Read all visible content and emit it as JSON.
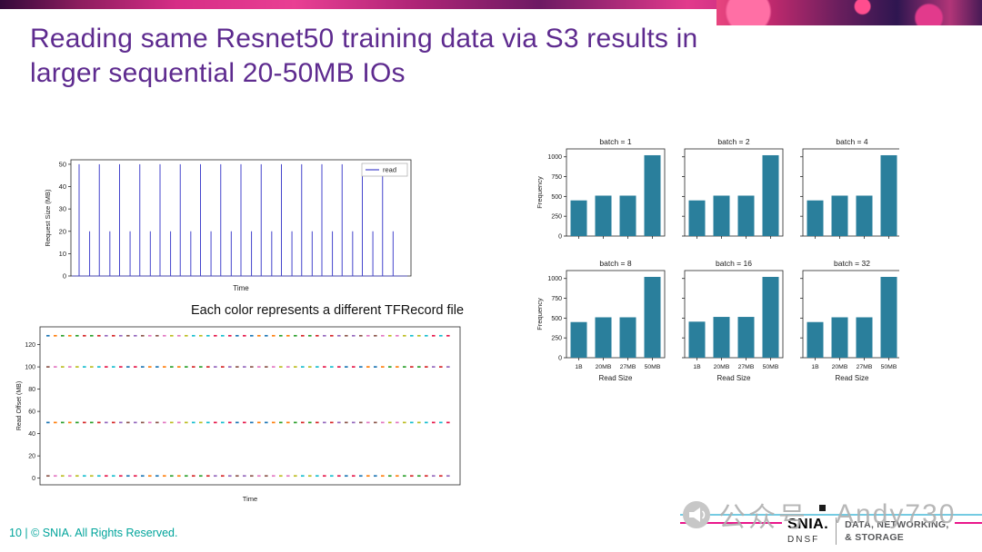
{
  "slide": {
    "title_line1": "Reading same Resnet50 training data via S3 results in",
    "title_line2": "larger sequential 20-50MB IOs",
    "footer": "10 | © SNIA. All Rights Reserved."
  },
  "watermark": {
    "text_cn": "公众号",
    "text_en": "Andy730"
  },
  "logo": {
    "name": "SNIA.",
    "sub": "DNSF",
    "line1": "DATA, NETWORKING,",
    "line2": "& STORAGE"
  },
  "chart_data": [
    {
      "id": "request_size_timeline",
      "type": "line",
      "title": "",
      "xlabel": "Time",
      "ylabel": "Request Size (MB)",
      "ylim": [
        0,
        52
      ],
      "yticks": [
        0,
        10,
        20,
        30,
        40,
        50
      ],
      "legend": [
        {
          "label": "read",
          "color": "#4444cc"
        }
      ],
      "line_color": "#4444cc",
      "spike_pattern": [
        50,
        20
      ],
      "spike_repeats": 16,
      "note": "alternating 50MB and 20MB sequential read requests over time"
    },
    {
      "id": "read_offset_timeline",
      "type": "scatter",
      "title": "Each color represents a different TFRecord file",
      "xlabel": "Time",
      "ylabel": "Read Offset (MB)",
      "ylim": [
        -6,
        136
      ],
      "yticks": [
        0,
        20,
        40,
        60,
        80,
        100,
        120
      ],
      "offset_rows": [
        128,
        100,
        50,
        2
      ],
      "dashes_per_row": 56,
      "palette": [
        "#1f77b4",
        "#ff7f0e",
        "#2ca02c",
        "#d62728",
        "#9467bd",
        "#8c564b",
        "#e377c2",
        "#bcbd22",
        "#17becf",
        "#e6194b"
      ]
    },
    {
      "id": "read_size_histograms",
      "type": "bar",
      "categories": [
        "1B",
        "20MB",
        "27MB",
        "50MB"
      ],
      "xlabel": "Read Size",
      "ylabel": "Frequency",
      "ylim": [
        0,
        1100
      ],
      "yticks": [
        0,
        250,
        500,
        750,
        1000
      ],
      "bar_color": "#2a7f9c",
      "subplots": [
        {
          "title": "batch = 1",
          "values": [
            450,
            510,
            510,
            1020
          ]
        },
        {
          "title": "batch = 2",
          "values": [
            450,
            510,
            510,
            1020
          ]
        },
        {
          "title": "batch = 4",
          "values": [
            450,
            510,
            510,
            1020
          ]
        },
        {
          "title": "batch = 8",
          "values": [
            450,
            510,
            510,
            1020
          ]
        },
        {
          "title": "batch = 16",
          "values": [
            455,
            515,
            515,
            1020
          ]
        },
        {
          "title": "batch = 32",
          "values": [
            450,
            510,
            510,
            1020
          ]
        }
      ]
    }
  ]
}
